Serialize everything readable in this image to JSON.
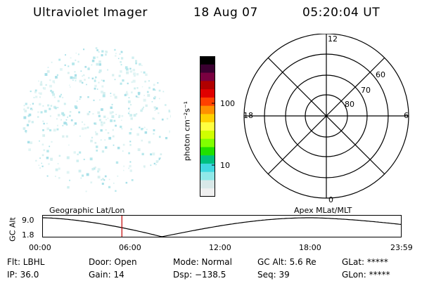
{
  "header": {
    "instrument": "Ultraviolet Imager",
    "date": "18 Aug 07",
    "time": "05:20:04 UT"
  },
  "colorbar": {
    "unit_label": "photon cm⁻²s⁻¹",
    "ticks": [
      "100",
      "10"
    ],
    "colors": [
      "#000000",
      "#3a0030",
      "#7a0040",
      "#b00000",
      "#e00000",
      "#ff4000",
      "#ff9000",
      "#ffd000",
      "#ffff40",
      "#d0ff00",
      "#80ff00",
      "#20e000",
      "#00c080",
      "#40d8e0",
      "#90e8e8",
      "#d8e8e8",
      "#f0f0f0"
    ]
  },
  "polar": {
    "mlt_labels": {
      "top": "12",
      "left": "18",
      "right": "6",
      "bottom": "0"
    },
    "lat_labels": [
      "60",
      "70",
      "80"
    ]
  },
  "timeline": {
    "left_label": "Geographic Lat/Lon",
    "right_label": "Apex MLat/MLT",
    "y_axis_label": "GC Alt",
    "y_ticks": [
      "9.0",
      "1.8"
    ],
    "x_ticks": [
      "00:00",
      "06:00",
      "12:00",
      "18:00",
      "23:59"
    ],
    "marker_time_hours": 5.33
  },
  "status": {
    "filter": "Flt: LBHL",
    "door": "Door: Open",
    "mode": "Mode: Normal",
    "gc_alt": "GC Alt: 5.6 Re",
    "glat": "GLat: *****",
    "ip": "IP: 36.0",
    "gain": "Gain: 14",
    "dsp": "Dsp: −138.5",
    "seq": "Seq: 39",
    "glon": "GLon: *****"
  }
}
